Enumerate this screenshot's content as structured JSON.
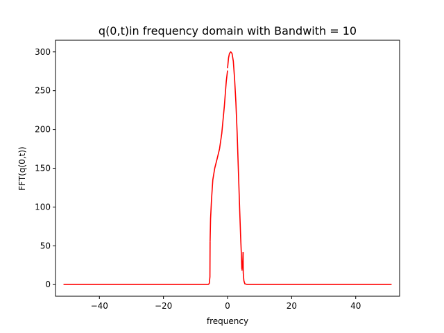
{
  "chart_data": {
    "type": "line",
    "title": "q(0,t)in frequency domain with Bandwith = 10",
    "xlabel": "frequency",
    "ylabel": "FFT(q(0,t))",
    "xlim": [
      -53.7,
      53.7
    ],
    "ylim": [
      -15,
      315
    ],
    "xticks": [
      -40,
      -20,
      0,
      20,
      40
    ],
    "xtick_labels": [
      "−40",
      "−20",
      "0",
      "20",
      "40"
    ],
    "yticks": [
      0,
      50,
      100,
      150,
      200,
      250,
      300
    ],
    "ytick_labels": [
      "0",
      "50",
      "100",
      "150",
      "200",
      "250",
      "300"
    ],
    "grid": false,
    "legend": "none",
    "series": [
      {
        "color": "#ff0000",
        "segments": [
          [
            [
              -51.2,
              0.3
            ],
            [
              -6.0,
              0.3
            ],
            [
              -5.7,
              1.5
            ],
            [
              -5.5,
              10
            ],
            [
              -5.45,
              55
            ]
          ],
          [
            [
              -5.45,
              55
            ],
            [
              -5.3,
              85
            ],
            [
              -5.0,
              110
            ],
            [
              -4.6,
              135
            ],
            [
              -4.0,
              150
            ],
            [
              -3.2,
              163
            ],
            [
              -2.5,
              175
            ],
            [
              -1.8,
              195
            ],
            [
              -1.0,
              230
            ],
            [
              -0.4,
              262
            ],
            [
              0.0,
              276
            ]
          ],
          [
            [
              0.0,
              279
            ],
            [
              0.3,
              292
            ],
            [
              0.6,
              298
            ],
            [
              1.0,
              300
            ],
            [
              1.4,
              298
            ],
            [
              1.8,
              288
            ],
            [
              2.2,
              265
            ],
            [
              2.6,
              235
            ],
            [
              3.0,
              195
            ],
            [
              3.4,
              145
            ],
            [
              3.8,
              95
            ],
            [
              4.1,
              60
            ],
            [
              4.3,
              40
            ],
            [
              4.45,
              20
            ]
          ],
          [
            [
              4.5,
              18
            ],
            [
              4.65,
              25
            ],
            [
              4.75,
              32
            ],
            [
              4.85,
              42
            ]
          ],
          [
            [
              4.85,
              42
            ],
            [
              4.9,
              15
            ],
            [
              5.1,
              5
            ],
            [
              5.4,
              1
            ],
            [
              6.0,
              0.3
            ],
            [
              51.2,
              0.3
            ]
          ]
        ]
      }
    ]
  }
}
